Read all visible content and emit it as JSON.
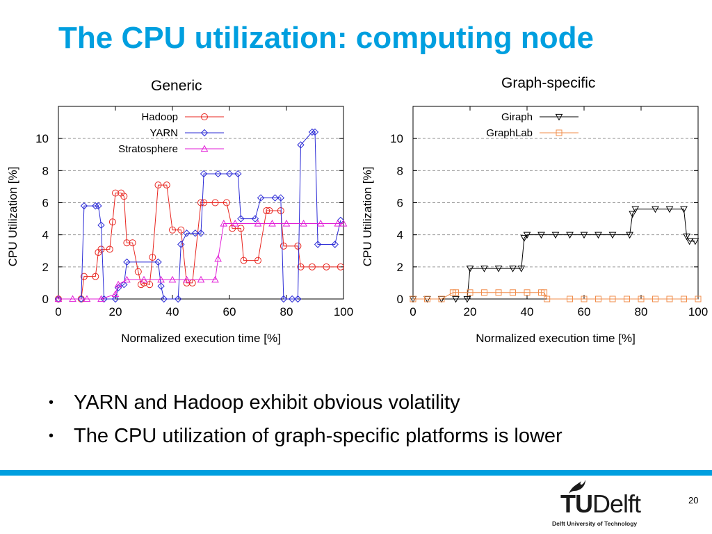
{
  "slide": {
    "title": "The CPU utilization: computing node",
    "bullets": [
      "YARN and Hadoop exhibit obvious volatility",
      "The CPU utilization of graph-specific platforms is lower"
    ],
    "page_number": "20",
    "logo": {
      "word_tu": "TU",
      "word_delft": "Delft",
      "subtitle": "Delft University of Technology"
    }
  },
  "colors": {
    "title": "#009fdf",
    "footer_bar": "#009fdf"
  },
  "chart_data": [
    {
      "type": "line",
      "caption": "Generic",
      "xlabel": "Normalized execution time [%]",
      "ylabel": "CPU Utilization [%]",
      "xlim": [
        0,
        100
      ],
      "ylim": [
        0,
        12
      ],
      "xticks": [
        0,
        20,
        40,
        60,
        80,
        100
      ],
      "yticks": [
        0,
        2,
        4,
        6,
        8,
        10
      ],
      "grid": "horizontal dashed",
      "legend": "top-right",
      "series": [
        {
          "name": "Hadoop",
          "color": "#e8251f",
          "marker": "circle",
          "x": [
            0,
            8,
            9,
            13,
            14,
            15,
            18,
            19,
            20,
            22,
            23,
            24,
            26,
            28,
            29,
            30,
            32,
            33,
            35,
            38,
            40,
            43,
            45,
            47,
            50,
            51,
            55,
            59,
            61,
            64,
            65,
            70,
            73,
            74,
            78,
            79,
            84,
            85,
            89,
            94,
            99
          ],
          "y": [
            0,
            0,
            1.4,
            1.4,
            2.9,
            3.1,
            3.1,
            4.8,
            6.6,
            6.6,
            6.4,
            3.5,
            3.5,
            1.7,
            0.9,
            1.0,
            0.9,
            2.6,
            7.1,
            7.1,
            4.3,
            4.3,
            1.0,
            1.0,
            6.0,
            6.0,
            6.0,
            6.0,
            4.4,
            4.4,
            2.4,
            2.4,
            5.5,
            5.5,
            5.5,
            3.3,
            3.3,
            2.0,
            2.0,
            2.0,
            2.0
          ]
        },
        {
          "name": "YARN",
          "color": "#2b2bd6",
          "marker": "diamond",
          "x": [
            0,
            8,
            9,
            13,
            14,
            15,
            16,
            20,
            21,
            23,
            24,
            35,
            36,
            37,
            42,
            43,
            45,
            48,
            50,
            51,
            56,
            60,
            63,
            64,
            69,
            71,
            76,
            78,
            79,
            82,
            84,
            85,
            89,
            90,
            91,
            97,
            99
          ],
          "y": [
            0,
            0,
            5.8,
            5.8,
            5.8,
            4.6,
            0,
            0,
            0.7,
            0.9,
            2.3,
            2.3,
            0.8,
            0,
            0,
            3.4,
            4.1,
            4.1,
            4.1,
            7.8,
            7.8,
            7.8,
            7.8,
            5.0,
            5.0,
            6.3,
            6.3,
            6.3,
            0,
            0,
            0,
            9.6,
            10.4,
            10.4,
            3.4,
            3.4,
            4.9
          ]
        },
        {
          "name": "Stratosphere",
          "color": "#e21ed7",
          "marker": "triangle",
          "x": [
            0,
            5,
            10,
            15,
            20,
            21,
            24,
            30,
            36,
            40,
            45,
            50,
            55,
            56,
            58,
            62,
            70,
            75,
            80,
            86,
            92,
            98,
            100
          ],
          "y": [
            0,
            0,
            0,
            0,
            0.3,
            0.9,
            1.2,
            1.2,
            1.2,
            1.2,
            1.2,
            1.2,
            1.2,
            2.5,
            4.7,
            4.7,
            4.7,
            4.7,
            4.7,
            4.7,
            4.7,
            4.7,
            4.7
          ]
        }
      ]
    },
    {
      "type": "line",
      "caption": "Graph-specific",
      "xlabel": "Normalized execution time [%]",
      "ylabel": "CPU Utilization [%]",
      "xlim": [
        0,
        100
      ],
      "ylim": [
        0,
        12
      ],
      "xticks": [
        0,
        20,
        40,
        60,
        80,
        100
      ],
      "yticks": [
        0,
        2,
        4,
        6,
        8,
        10
      ],
      "grid": "horizontal dashed",
      "legend": "top-right",
      "series": [
        {
          "name": "Giraph",
          "color": "#000000",
          "marker": "triangle-down",
          "x": [
            0,
            5,
            10,
            15,
            19,
            20,
            25,
            30,
            35,
            38,
            39,
            40,
            45,
            50,
            55,
            60,
            65,
            70,
            76,
            77,
            78,
            85,
            90,
            95,
            96,
            97,
            99
          ],
          "y": [
            0,
            0,
            0,
            0,
            0,
            1.9,
            1.9,
            1.9,
            1.9,
            1.9,
            3.8,
            4.0,
            4.0,
            4.0,
            4.0,
            4.0,
            4.0,
            4.0,
            4.0,
            5.3,
            5.6,
            5.6,
            5.6,
            5.6,
            3.9,
            3.6,
            3.6
          ]
        },
        {
          "name": "GraphLab",
          "color": "#f08c4a",
          "marker": "square",
          "x": [
            0,
            5,
            10,
            14,
            15,
            20,
            25,
            30,
            35,
            40,
            45,
            46,
            47,
            55,
            60,
            65,
            70,
            75,
            80,
            85,
            90,
            95,
            100
          ],
          "y": [
            0,
            0,
            0,
            0.4,
            0.4,
            0.4,
            0.4,
            0.4,
            0.4,
            0.4,
            0.4,
            0.4,
            0,
            0,
            0,
            0,
            0,
            0,
            0,
            0,
            0,
            0,
            0
          ]
        }
      ]
    }
  ]
}
